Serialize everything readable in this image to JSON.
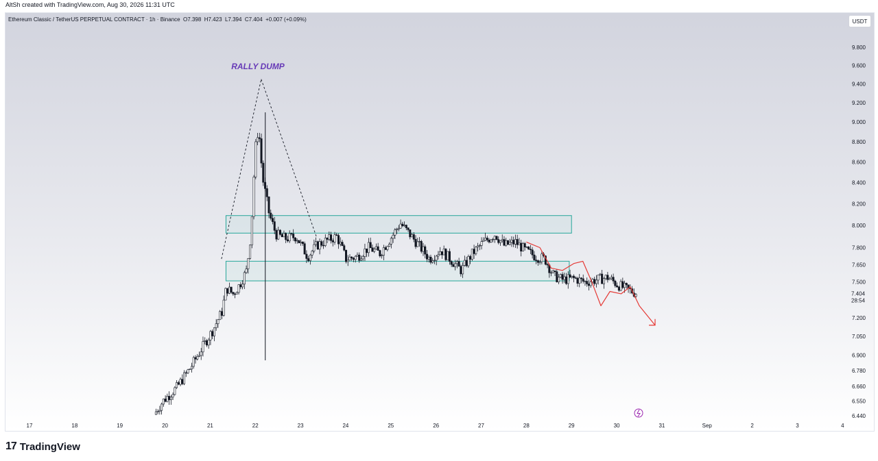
{
  "header": {
    "caption": "AltSh created with TradingView.com, Aug 30, 2026 11:31 UTC",
    "symbol_line": "Ethereum Classic / TetherUS PERPETUAL CONTRACT · 1h · Binance  O7.398  H7.423  L7.394  C7.404  +0.007 (+0.09%)",
    "currency_button": "USDT"
  },
  "footer": {
    "logo_mark": "17",
    "brand": "TradingView"
  },
  "colors": {
    "candle": "#131722",
    "box": "#26a69a",
    "annotation_red": "#e53935",
    "label_purple": "#673ab7",
    "dashed": "#131722"
  },
  "icons": {
    "flash": "lightning-bolt-icon"
  },
  "chart_data": {
    "type": "candlestick",
    "y_scale": "log",
    "y_ticks": [
      "9.800",
      "9.600",
      "9.400",
      "9.200",
      "9.000",
      "8.800",
      "8.600",
      "8.400",
      "8.200",
      "8.000",
      "7.800",
      "7.650",
      "7.500",
      "7.200",
      "7.050",
      "6.900",
      "6.780",
      "6.660",
      "6.550",
      "6.440"
    ],
    "x_ticks": [
      "17",
      "18",
      "19",
      "20",
      "21",
      "22",
      "23",
      "24",
      "25",
      "26",
      "27",
      "28",
      "29",
      "30",
      "31",
      "Sep",
      "2",
      "3",
      "4"
    ],
    "last_price": "7.404",
    "countdown": "28:54",
    "annotation_text": "RALLY DUMP",
    "range_boxes": [
      {
        "from_day": 21.35,
        "to_day": 29.0,
        "top": 8.09,
        "bottom": 7.93
      },
      {
        "from_day": 21.35,
        "to_day": 28.95,
        "top": 7.68,
        "bottom": 7.51
      }
    ],
    "ohlc_path": [
      [
        19.8,
        6.45
      ],
      [
        20.0,
        6.55
      ],
      [
        20.3,
        6.65
      ],
      [
        20.6,
        6.8
      ],
      [
        20.9,
        6.98
      ],
      [
        21.1,
        7.1
      ],
      [
        21.3,
        7.25
      ],
      [
        21.4,
        7.45
      ],
      [
        21.55,
        7.4
      ],
      [
        21.7,
        7.48
      ],
      [
        21.85,
        7.6
      ],
      [
        21.95,
        7.95
      ],
      [
        22.0,
        8.4
      ],
      [
        22.07,
        8.9
      ],
      [
        22.13,
        8.85
      ],
      [
        22.2,
        8.45
      ],
      [
        22.35,
        8.1
      ],
      [
        22.5,
        7.92
      ],
      [
        22.7,
        7.88
      ],
      [
        22.95,
        7.9
      ],
      [
        23.2,
        7.72
      ],
      [
        23.4,
        7.82
      ],
      [
        23.6,
        7.86
      ],
      [
        23.85,
        7.9
      ],
      [
        24.05,
        7.7
      ],
      [
        24.3,
        7.72
      ],
      [
        24.55,
        7.8
      ],
      [
        24.8,
        7.75
      ],
      [
        25.1,
        7.92
      ],
      [
        25.25,
        8.02
      ],
      [
        25.5,
        7.9
      ],
      [
        25.7,
        7.8
      ],
      [
        25.9,
        7.7
      ],
      [
        26.15,
        7.78
      ],
      [
        26.4,
        7.68
      ],
      [
        26.6,
        7.6
      ],
      [
        26.85,
        7.75
      ],
      [
        27.1,
        7.85
      ],
      [
        27.35,
        7.92
      ],
      [
        27.55,
        7.82
      ],
      [
        27.8,
        7.85
      ],
      [
        28.0,
        7.78
      ],
      [
        28.25,
        7.72
      ],
      [
        28.45,
        7.7
      ],
      [
        28.65,
        7.55
      ],
      [
        28.85,
        7.52
      ],
      [
        29.1,
        7.53
      ],
      [
        29.35,
        7.5
      ],
      [
        29.6,
        7.52
      ],
      [
        29.85,
        7.54
      ],
      [
        30.05,
        7.48
      ],
      [
        30.25,
        7.44
      ],
      [
        30.45,
        7.41
      ]
    ],
    "spike_wick": {
      "day": 22.22,
      "high": 9.1,
      "low": 6.86
    },
    "projection": [
      [
        28.0,
        7.85
      ],
      [
        28.3,
        7.8
      ],
      [
        28.55,
        7.62
      ],
      [
        28.8,
        7.6
      ],
      [
        29.05,
        7.66
      ],
      [
        29.25,
        7.68
      ],
      [
        29.45,
        7.5
      ],
      [
        29.65,
        7.3
      ],
      [
        29.85,
        7.42
      ],
      [
        30.1,
        7.4
      ],
      [
        30.3,
        7.46
      ],
      [
        30.5,
        7.3
      ],
      [
        30.85,
        7.14
      ]
    ],
    "dashed_lines": [
      [
        [
          21.25,
          7.7
        ],
        [
          22.13,
          9.45
        ]
      ],
      [
        [
          22.13,
          9.45
        ],
        [
          23.35,
          7.9
        ]
      ]
    ]
  }
}
